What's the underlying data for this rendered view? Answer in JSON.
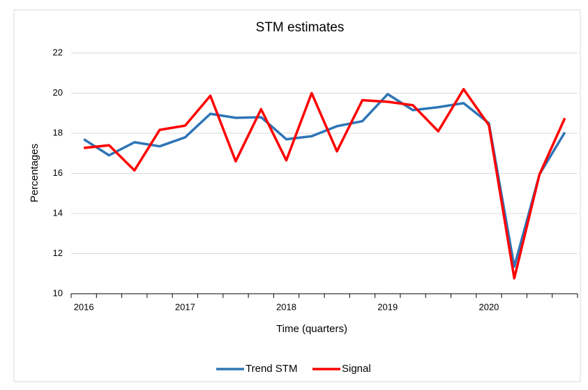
{
  "chart_data": {
    "type": "line",
    "title": "STM estimates",
    "x_label": "Time (quarters)",
    "y_label": "Percentages",
    "categories": [
      "2016",
      null,
      null,
      null,
      "2017",
      null,
      null,
      null,
      "2018",
      null,
      null,
      null,
      "2019",
      null,
      null,
      null,
      "2020",
      null,
      null,
      null
    ],
    "series": [
      {
        "name": "Trend STM",
        "color": "#2e75b6",
        "values": [
          17.7,
          16.9,
          17.55,
          17.35,
          17.8,
          18.97,
          18.77,
          18.8,
          17.7,
          17.85,
          18.35,
          18.6,
          19.95,
          19.15,
          19.3,
          19.5,
          18.5,
          11.35,
          15.95,
          18.05
        ]
      },
      {
        "name": "Signal",
        "color": "#ff0000",
        "values": [
          17.27,
          17.4,
          16.15,
          18.17,
          18.38,
          19.87,
          16.6,
          19.2,
          16.65,
          20.0,
          17.1,
          19.65,
          19.57,
          19.4,
          18.1,
          20.2,
          18.4,
          10.77,
          15.95,
          18.75
        ]
      }
    ],
    "ylim": [
      10,
      22
    ],
    "yticks": [
      10,
      12,
      14,
      16,
      18,
      20,
      22
    ],
    "grid": true,
    "legend": "bottom"
  }
}
